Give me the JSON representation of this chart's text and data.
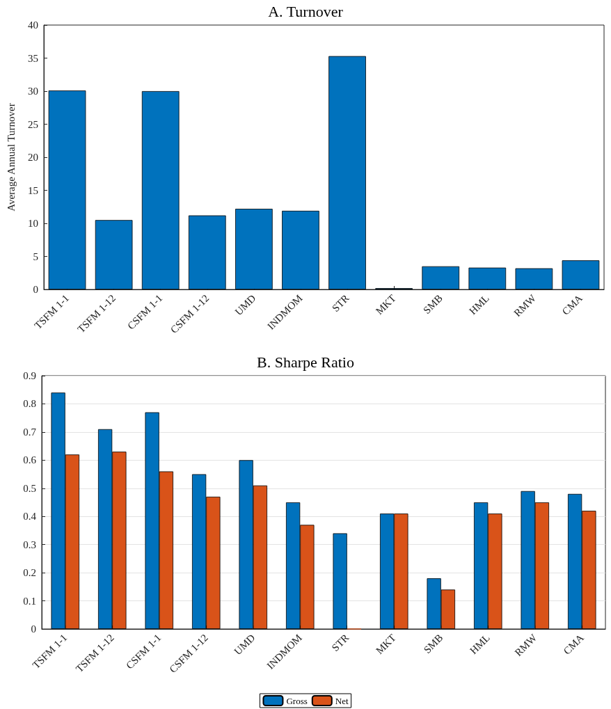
{
  "chart_data": [
    {
      "type": "bar",
      "title": "A. Turnover",
      "ylabel": "Average Annual Turnover",
      "categories": [
        "TSFM 1-1",
        "TSFM 1-12",
        "CSFM 1-1",
        "CSFM 1-12",
        "UMD",
        "INDMOM",
        "STR",
        "MKT",
        "SMB",
        "HML",
        "RMW",
        "CMA"
      ],
      "series": [
        {
          "color": "#0072bd",
          "values": [
            30.1,
            10.5,
            30.0,
            11.2,
            12.2,
            11.9,
            35.3,
            0.2,
            3.5,
            3.3,
            3.2,
            4.4
          ]
        }
      ],
      "ylim": [
        0,
        40
      ],
      "yticks": [
        0,
        5,
        10,
        15,
        20,
        25,
        30,
        35,
        40
      ],
      "grid": false,
      "legend": false
    },
    {
      "type": "bar",
      "title": "B. Sharpe Ratio",
      "categories": [
        "TSFM 1-1",
        "TSFM 1-12",
        "CSFM 1-1",
        "CSFM 1-12",
        "UMD",
        "INDMOM",
        "STR",
        "MKT",
        "SMB",
        "HML",
        "RMW",
        "CMA"
      ],
      "series": [
        {
          "name": "Gross",
          "color": "#0072bd",
          "values": [
            0.84,
            0.71,
            0.77,
            0.55,
            0.6,
            0.45,
            0.34,
            0.41,
            0.18,
            0.45,
            0.49,
            0.48
          ]
        },
        {
          "name": "Net",
          "color": "#d95319",
          "values": [
            0.62,
            0.63,
            0.56,
            0.47,
            0.51,
            0.37,
            0,
            0.41,
            0.14,
            0.41,
            0.45,
            0.42
          ]
        }
      ],
      "ylim": [
        0,
        0.9
      ],
      "yticks": [
        0,
        0.1,
        0.2,
        0.3,
        0.4,
        0.5,
        0.6,
        0.7,
        0.8,
        0.9
      ],
      "grid": "y",
      "legend": "bottom"
    }
  ]
}
